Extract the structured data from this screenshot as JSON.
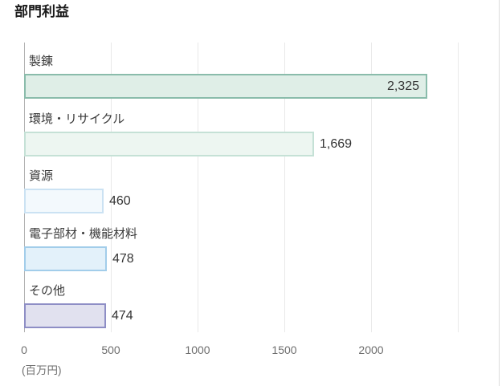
{
  "page": {
    "title": "部門利益"
  },
  "chart_data": {
    "type": "bar",
    "orientation": "horizontal",
    "title": "部門利益",
    "categories": [
      "製錬",
      "環境・リサイクル",
      "資源",
      "電子部材・機能材料",
      "その他"
    ],
    "values": [
      2325,
      1669,
      460,
      478,
      474
    ],
    "value_labels": [
      "2,325",
      "1,669",
      "460",
      "478",
      "474"
    ],
    "value_inside": [
      true,
      false,
      false,
      false,
      false
    ],
    "xlabel": "(百万円)",
    "ylabel": "",
    "xlim": [
      0,
      2500
    ],
    "x_ticks": [
      0,
      500,
      1000,
      1500,
      2000
    ],
    "x_tick_labels": [
      "0",
      "500",
      "1000",
      "1500",
      "2000"
    ],
    "grid": true,
    "legend": false,
    "bar_styles": [
      {
        "fill": "#dfeee7",
        "border": "#8abcab"
      },
      {
        "fill": "#edf6f1",
        "border": "#c5e1d6"
      },
      {
        "fill": "#f3f9fd",
        "border": "#cbe2f3"
      },
      {
        "fill": "#e3f1fa",
        "border": "#a2cdea"
      },
      {
        "fill": "#e1e1ef",
        "border": "#8e8ec5"
      }
    ],
    "colors": {
      "gridline": "#e9e9e9",
      "axis_line": "#b3b3b3",
      "title_text": "#1a1a1a",
      "category_text": "#3a3a3a",
      "value_text": "#333333",
      "tick_text": "#6e6e6e"
    }
  }
}
